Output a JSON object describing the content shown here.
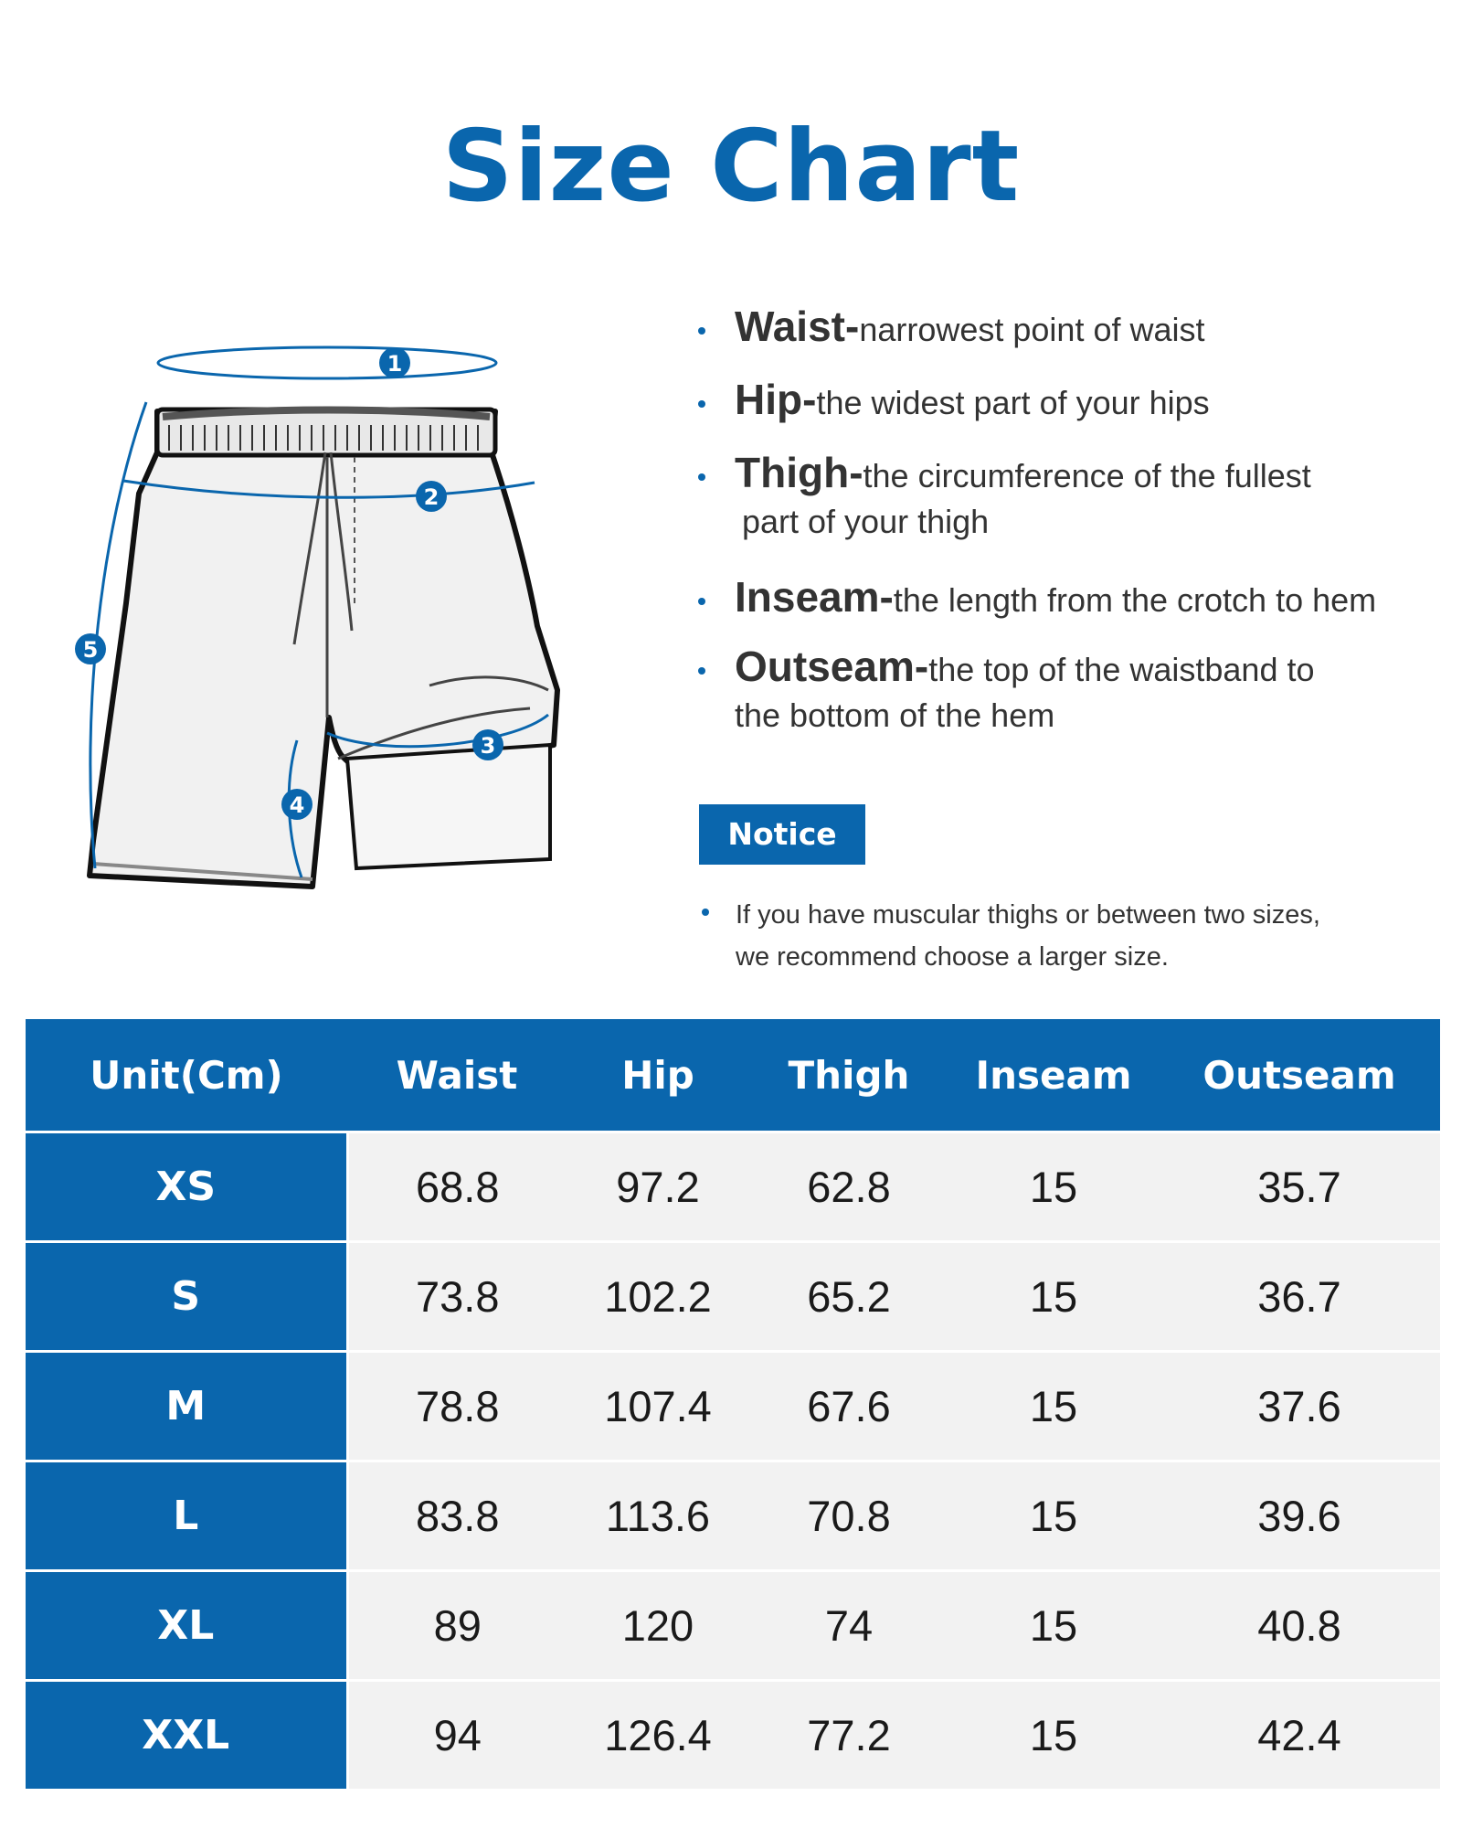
{
  "title": "Size Chart",
  "diagram": {
    "markers": [
      "1",
      "2",
      "3",
      "4",
      "5"
    ]
  },
  "definitions": [
    {
      "term": "Waist",
      "desc": "narrowest point of waist",
      "cont": ""
    },
    {
      "term": "Hip",
      "desc": "the widest part of your hips",
      "cont": ""
    },
    {
      "term": "Thigh",
      "desc": "the circumference of the fullest",
      "cont": "part of your thigh"
    },
    {
      "term": "Inseam",
      "desc": "the length from the crotch to hem",
      "cont": ""
    },
    {
      "term": "Outseam",
      "desc": "the top of the waistband to",
      "cont": "the bottom of the hem"
    }
  ],
  "notice": {
    "label": "Notice",
    "line1": "If you have muscular thighs or between two sizes,",
    "line2": "we recommend choose a larger size."
  },
  "table": {
    "headers": [
      "Unit(Cm)",
      "Waist",
      "Hip",
      "Thigh",
      "Inseam",
      "Outseam"
    ],
    "rows": [
      [
        "XS",
        "68.8",
        "97.2",
        "62.8",
        "15",
        "35.7"
      ],
      [
        "S",
        "73.8",
        "102.2",
        "65.2",
        "15",
        "36.7"
      ],
      [
        "M",
        "78.8",
        "107.4",
        "67.6",
        "15",
        "37.6"
      ],
      [
        "L",
        "83.8",
        "113.6",
        "70.8",
        "15",
        "39.6"
      ],
      [
        "XL",
        "89",
        "120",
        "74",
        "15",
        "40.8"
      ],
      [
        "XXL",
        "94",
        "126.4",
        "77.2",
        "15",
        "42.4"
      ]
    ]
  },
  "colors": {
    "brand_blue": "#0a66ad",
    "row_bg": "#f2f2f2",
    "text": "#333333"
  }
}
